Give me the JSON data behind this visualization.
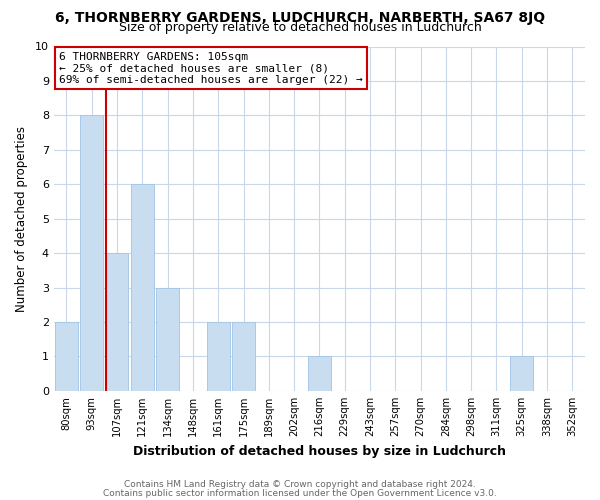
{
  "title1": "6, THORNBERRY GARDENS, LUDCHURCH, NARBERTH, SA67 8JQ",
  "title2": "Size of property relative to detached houses in Ludchurch",
  "xlabel": "Distribution of detached houses by size in Ludchurch",
  "ylabel": "Number of detached properties",
  "bin_labels": [
    "80sqm",
    "93sqm",
    "107sqm",
    "121sqm",
    "134sqm",
    "148sqm",
    "161sqm",
    "175sqm",
    "189sqm",
    "202sqm",
    "216sqm",
    "229sqm",
    "243sqm",
    "257sqm",
    "270sqm",
    "284sqm",
    "298sqm",
    "311sqm",
    "325sqm",
    "338sqm",
    "352sqm"
  ],
  "bar_values": [
    2,
    8,
    4,
    6,
    3,
    0,
    2,
    2,
    0,
    0,
    1,
    0,
    0,
    0,
    0,
    0,
    0,
    0,
    1,
    0,
    0
  ],
  "bar_color": "#c9ddf0",
  "bar_edge_color": "#a8c8e8",
  "subject_line_bin_index": 2,
  "subject_line_color": "#cc0000",
  "annotation_line1": "6 THORNBERRY GARDENS: 105sqm",
  "annotation_line2": "← 25% of detached houses are smaller (8)",
  "annotation_line3": "69% of semi-detached houses are larger (22) →",
  "ylim": [
    0,
    10
  ],
  "yticks": [
    0,
    1,
    2,
    3,
    4,
    5,
    6,
    7,
    8,
    9,
    10
  ],
  "footer_line1": "Contains HM Land Registry data © Crown copyright and database right 2024.",
  "footer_line2": "Contains public sector information licensed under the Open Government Licence v3.0.",
  "background_color": "#ffffff",
  "grid_color": "#c8d8ea",
  "bar_edge_linewidth": 0.7,
  "title1_fontsize": 10,
  "title2_fontsize": 9
}
